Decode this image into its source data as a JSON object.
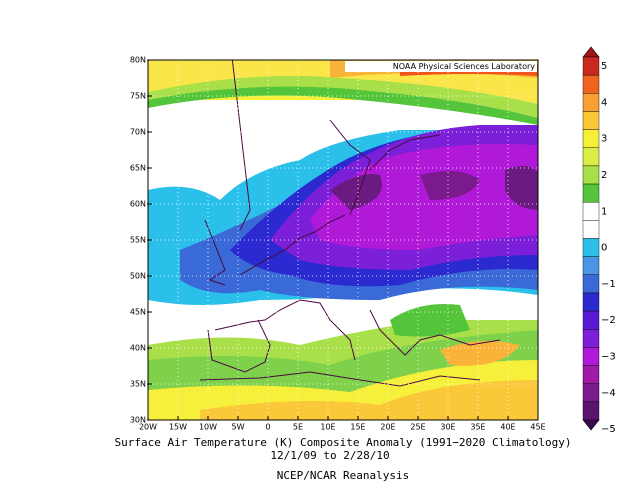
{
  "map": {
    "credit": "NOAA Physical Sciences Laboratory",
    "lat_labels": [
      "80N",
      "75N",
      "70N",
      "65N",
      "60N",
      "55N",
      "50N",
      "45N",
      "40N",
      "35N",
      "30N"
    ],
    "lon_labels": [
      "20W",
      "15W",
      "10W",
      "5W",
      "0",
      "5E",
      "10E",
      "15E",
      "20E",
      "25E",
      "30E",
      "35E",
      "40E",
      "45E"
    ]
  },
  "colorbar": {
    "labels": [
      "5",
      "4",
      "3",
      "2",
      "1",
      "0",
      "−1",
      "−2",
      "−3",
      "−4",
      "−5"
    ]
  },
  "caption": {
    "title": "Surface Air Temperature (K) Composite Anomaly (1991−2020 Climatology)",
    "dates": "12/1/09  to 2/28/10",
    "source": "NCEP/NCAR Reanalysis"
  }
}
